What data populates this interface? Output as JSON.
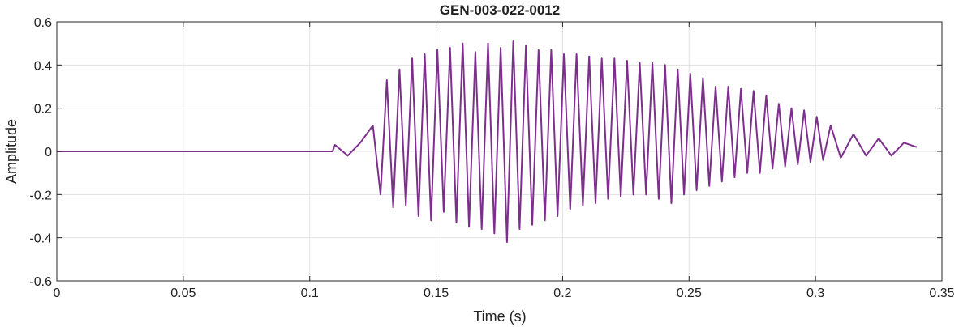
{
  "chart_data": {
    "type": "line",
    "title": "GEN-003-022-0012",
    "xlabel": "Time (s)",
    "ylabel": "Amplitude",
    "xlim": [
      0,
      0.35
    ],
    "ylim": [
      -0.6,
      0.6
    ],
    "xticks": [
      0,
      0.05,
      0.1,
      0.15,
      0.2,
      0.25,
      0.3,
      0.35
    ],
    "xtick_labels": [
      "0",
      "0.05",
      "0.1",
      "0.15",
      "0.2",
      "0.25",
      "0.3",
      "0.35"
    ],
    "yticks": [
      -0.6,
      -0.4,
      -0.2,
      0,
      0.2,
      0.4,
      0.6
    ],
    "ytick_labels": [
      "-0.6",
      "-0.4",
      "-0.2",
      "0",
      "0.2",
      "0.4",
      "0.6"
    ],
    "grid": true,
    "line_color": "#7E2F8E",
    "series": [
      {
        "x": [
          0,
          0.02,
          0.05,
          0.08,
          0.1,
          0.109,
          0.11,
          0.115,
          0.12,
          0.125,
          0.128,
          0.1305,
          0.133,
          0.1355,
          0.138,
          0.1405,
          0.143,
          0.1455,
          0.148,
          0.1505,
          0.153,
          0.1555,
          0.158,
          0.1605,
          0.163,
          0.1655,
          0.168,
          0.1705,
          0.173,
          0.1755,
          0.178,
          0.1805,
          0.183,
          0.1855,
          0.188,
          0.1905,
          0.193,
          0.1955,
          0.198,
          0.2005,
          0.203,
          0.2055,
          0.208,
          0.2105,
          0.213,
          0.2155,
          0.218,
          0.2205,
          0.223,
          0.2255,
          0.228,
          0.2305,
          0.233,
          0.2355,
          0.238,
          0.2405,
          0.243,
          0.2455,
          0.248,
          0.2505,
          0.253,
          0.2555,
          0.258,
          0.2605,
          0.263,
          0.2655,
          0.268,
          0.2705,
          0.273,
          0.2755,
          0.278,
          0.2805,
          0.283,
          0.2855,
          0.288,
          0.2905,
          0.293,
          0.2955,
          0.298,
          0.3005,
          0.303,
          0.306,
          0.31,
          0.315,
          0.32,
          0.325,
          0.33,
          0.335,
          0.34
        ],
        "y": [
          0,
          0,
          0,
          0,
          0,
          0,
          0.03,
          -0.02,
          0.04,
          0.12,
          -0.2,
          0.33,
          -0.26,
          0.38,
          -0.25,
          0.43,
          -0.3,
          0.45,
          -0.32,
          0.47,
          -0.28,
          0.48,
          -0.33,
          0.5,
          -0.35,
          0.46,
          -0.36,
          0.5,
          -0.38,
          0.48,
          -0.42,
          0.51,
          -0.36,
          0.49,
          -0.34,
          0.47,
          -0.32,
          0.47,
          -0.3,
          0.45,
          -0.27,
          0.45,
          -0.25,
          0.44,
          -0.24,
          0.43,
          -0.22,
          0.43,
          -0.21,
          0.42,
          -0.2,
          0.41,
          -0.2,
          0.41,
          -0.22,
          0.4,
          -0.24,
          0.38,
          -0.2,
          0.36,
          -0.18,
          0.34,
          -0.16,
          0.3,
          -0.14,
          0.3,
          -0.12,
          0.29,
          -0.1,
          0.28,
          -0.1,
          0.26,
          -0.08,
          0.22,
          -0.07,
          0.2,
          -0.06,
          0.19,
          -0.05,
          0.16,
          -0.04,
          0.12,
          -0.03,
          0.08,
          -0.02,
          0.06,
          -0.02,
          0.04,
          0.02
        ]
      }
    ]
  }
}
